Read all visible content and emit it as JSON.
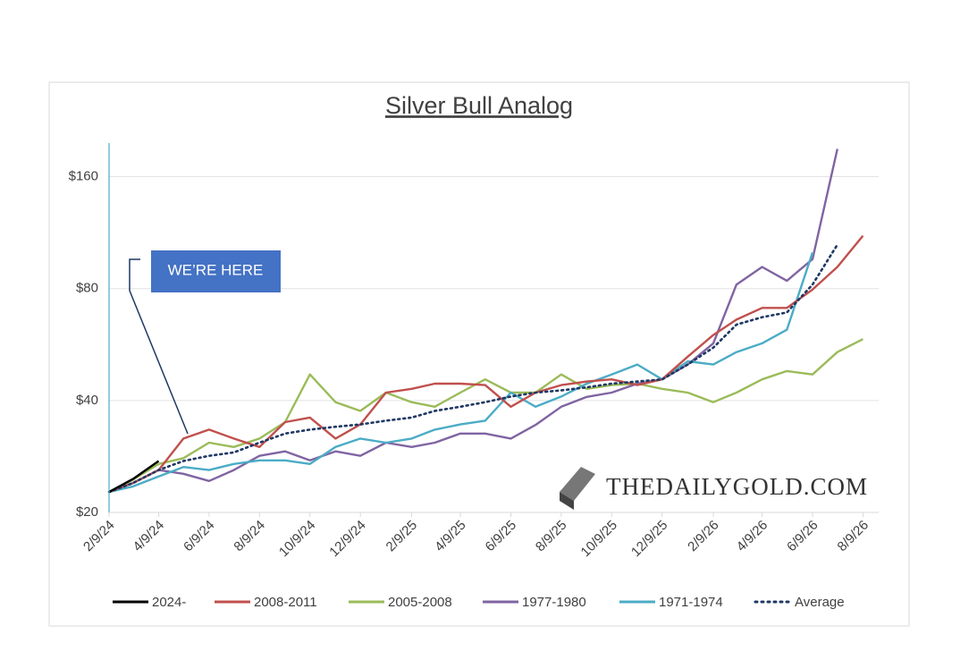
{
  "chart_data": {
    "type": "line",
    "title": "Silver Bull Analog",
    "x": [
      "2/9/24",
      "3/9/24",
      "4/9/24",
      "5/9/24",
      "6/9/24",
      "7/9/24",
      "8/9/24",
      "9/9/24",
      "10/9/24",
      "11/9/24",
      "12/9/24",
      "1/9/25",
      "2/9/25",
      "3/9/25",
      "4/9/25",
      "5/9/25",
      "6/9/25",
      "7/9/25",
      "8/9/25",
      "9/9/25",
      "10/9/25",
      "11/9/25",
      "12/9/25",
      "1/9/26",
      "2/9/26",
      "3/9/26",
      "4/9/26",
      "5/9/26",
      "6/9/26",
      "7/9/26",
      "8/9/26"
    ],
    "xlim": [
      "2/9/24",
      "8/28/26"
    ],
    "xticks": [
      "2/9/24",
      "4/9/24",
      "6/9/24",
      "8/9/24",
      "10/9/24",
      "12/9/24",
      "2/9/25",
      "4/9/25",
      "6/9/25",
      "8/9/25",
      "10/9/25",
      "12/9/25",
      "2/9/26",
      "4/9/26",
      "6/9/26",
      "8/9/26"
    ],
    "log_scale": true,
    "ylim": [
      20,
      197
    ],
    "yticks": [
      {
        "value": 20,
        "label": "$20"
      },
      {
        "value": 40,
        "label": "$40"
      },
      {
        "value": 80,
        "label": "$80"
      },
      {
        "value": 160,
        "label": "$160"
      }
    ],
    "grid": true,
    "legend": "bottom",
    "annotation": "WE’RE HERE",
    "watermark": "THEDAILYGOLD.COM",
    "series": [
      {
        "name": "2024-",
        "color": "#000000",
        "values": [
          22.7,
          24.6,
          27.5,
          null,
          null,
          null,
          null,
          null,
          null,
          null,
          null,
          null,
          null,
          null,
          null,
          null,
          null,
          null,
          null,
          null,
          null,
          null,
          null,
          null,
          null,
          null,
          null,
          null,
          null,
          null,
          null
        ]
      },
      {
        "name": "2008-2011",
        "color": "#c0504d",
        "values": [
          22.7,
          24,
          26,
          31.6,
          33.4,
          31.6,
          30,
          35,
          36,
          31.6,
          34.5,
          42,
          43,
          44.4,
          44.4,
          44,
          38.5,
          42,
          44,
          45,
          45.6,
          44,
          45.6,
          52.5,
          60,
          66,
          71,
          71,
          79.5,
          91.5,
          111
        ]
      },
      {
        "name": "2005-2008",
        "color": "#9bbb59",
        "values": [
          22.7,
          24.5,
          27,
          28,
          30.8,
          30,
          31.6,
          35,
          47,
          39.6,
          37.5,
          42,
          39.6,
          38.5,
          42,
          45.6,
          42,
          42,
          47,
          43,
          44,
          44.4,
          43,
          42,
          39.6,
          42,
          45.6,
          48,
          47,
          54,
          58.5
        ]
      },
      {
        "name": "1977-1980",
        "color": "#8064a2",
        "values": [
          22.7,
          24,
          26,
          25.4,
          24.3,
          26,
          28.4,
          29.2,
          27.6,
          29.2,
          28.4,
          30.8,
          30,
          30.8,
          32.6,
          32.6,
          31.6,
          34.4,
          38.5,
          40.9,
          42,
          44.4,
          45.6,
          50,
          57,
          82,
          91.5,
          84,
          96,
          190,
          null
        ]
      },
      {
        "name": "1971-1974",
        "color": "#4bacc6",
        "values": [
          22.7,
          23.5,
          25,
          26.5,
          26,
          27,
          27.6,
          27.6,
          27,
          30,
          31.6,
          30.8,
          31.6,
          33.4,
          34.5,
          35.3,
          42,
          38.5,
          41,
          44.4,
          47,
          50,
          45.6,
          51,
          50,
          54,
          57,
          62,
          100,
          null,
          null
        ]
      },
      {
        "name": "Average",
        "color": "#1f3864",
        "style": "dotted",
        "values": [
          22.7,
          24,
          26,
          27.5,
          28.4,
          29,
          30.8,
          32.6,
          33.4,
          34,
          34.5,
          35.3,
          36,
          37.5,
          38.5,
          39.6,
          41,
          42,
          42.6,
          43.4,
          44.4,
          45,
          45.6,
          50,
          55.5,
          64,
          67,
          69,
          82,
          105,
          null
        ]
      }
    ]
  }
}
